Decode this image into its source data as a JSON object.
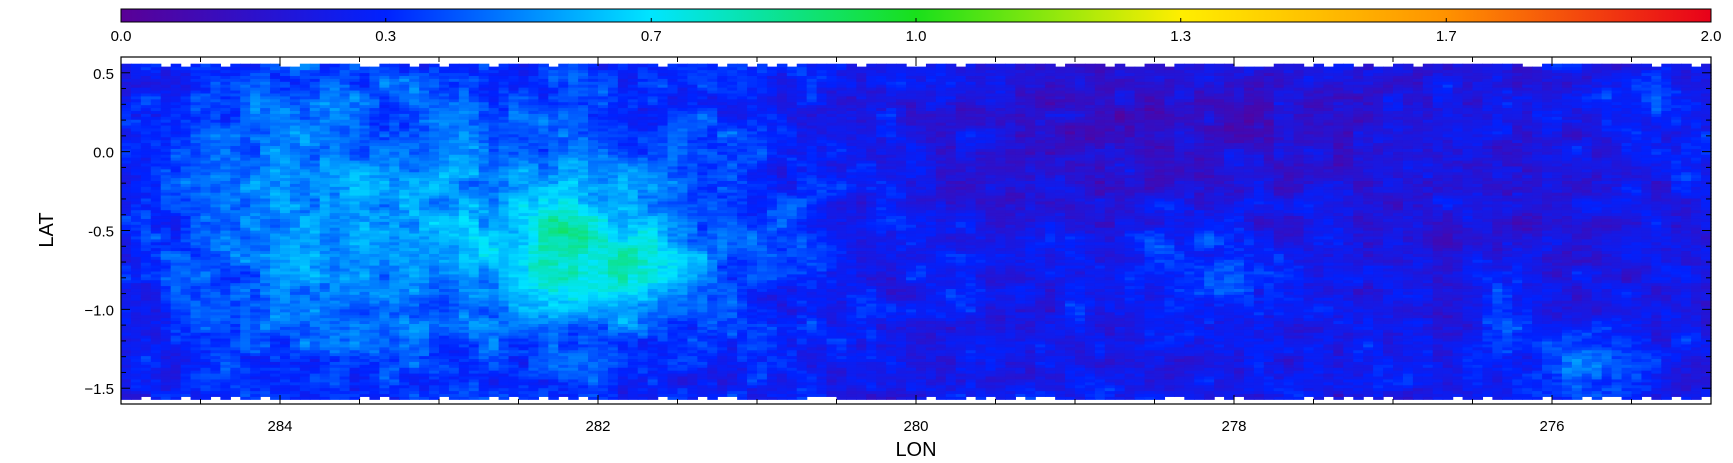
{
  "chart_data": {
    "type": "heatmap",
    "xlabel": "LON",
    "ylabel": "LAT",
    "xlim": [
      285,
      275
    ],
    "ylim": [
      -1.6,
      0.6
    ],
    "x_ticks": [
      284,
      282,
      280,
      278,
      276
    ],
    "x_tick_labels": [
      "284",
      "282",
      "280",
      "278",
      "276"
    ],
    "y_ticks": [
      0.5,
      0.0,
      -0.5,
      -1.0,
      -1.5
    ],
    "y_tick_labels": [
      "0.5",
      "0.0",
      "-0.5",
      "−1.0",
      "−1.5"
    ],
    "colorbar": {
      "range": [
        0.0,
        2.0
      ],
      "ticks": [
        0.0,
        0.333,
        0.667,
        1.0,
        1.333,
        1.667,
        2.0
      ],
      "tick_labels": [
        "0.0",
        "0.3",
        "0.7",
        "1.0",
        "1.3",
        "1.7",
        "2.0"
      ],
      "colormap": "rainbow (purple-blue-cyan-green-yellow-orange-red)",
      "colors": [
        "#5a0096",
        "#0022ff",
        "#00e5ff",
        "#19e01b",
        "#ffee00",
        "#ff9200",
        "#e8001a"
      ]
    },
    "data_extent": {
      "lon": [
        285,
        275
      ],
      "lat": [
        -1.57,
        0.57
      ]
    },
    "blank_value_color": "#ffffff",
    "features": [
      {
        "region": "lon 282-284.5, lat -1.5 to 0.5",
        "approx_value": 0.55
      },
      {
        "region": "lon 281.5-282.7, lat -1.0 to -0.4 (peak)",
        "approx_value": 0.85
      },
      {
        "region": "lon 277-280, lat -0.1 to 0.5",
        "approx_value": 0.22
      },
      {
        "region": "lon 275-277, lat -1.5 to 0.5",
        "approx_value": 0.3
      },
      {
        "region": "lon 277.5-278.5, lat -1.0 to -0.6 (filament)",
        "approx_value": 0.55
      },
      {
        "region": "lon 275.5-276.6, lat -1.5 to -1.0",
        "approx_value": 0.55
      }
    ]
  }
}
